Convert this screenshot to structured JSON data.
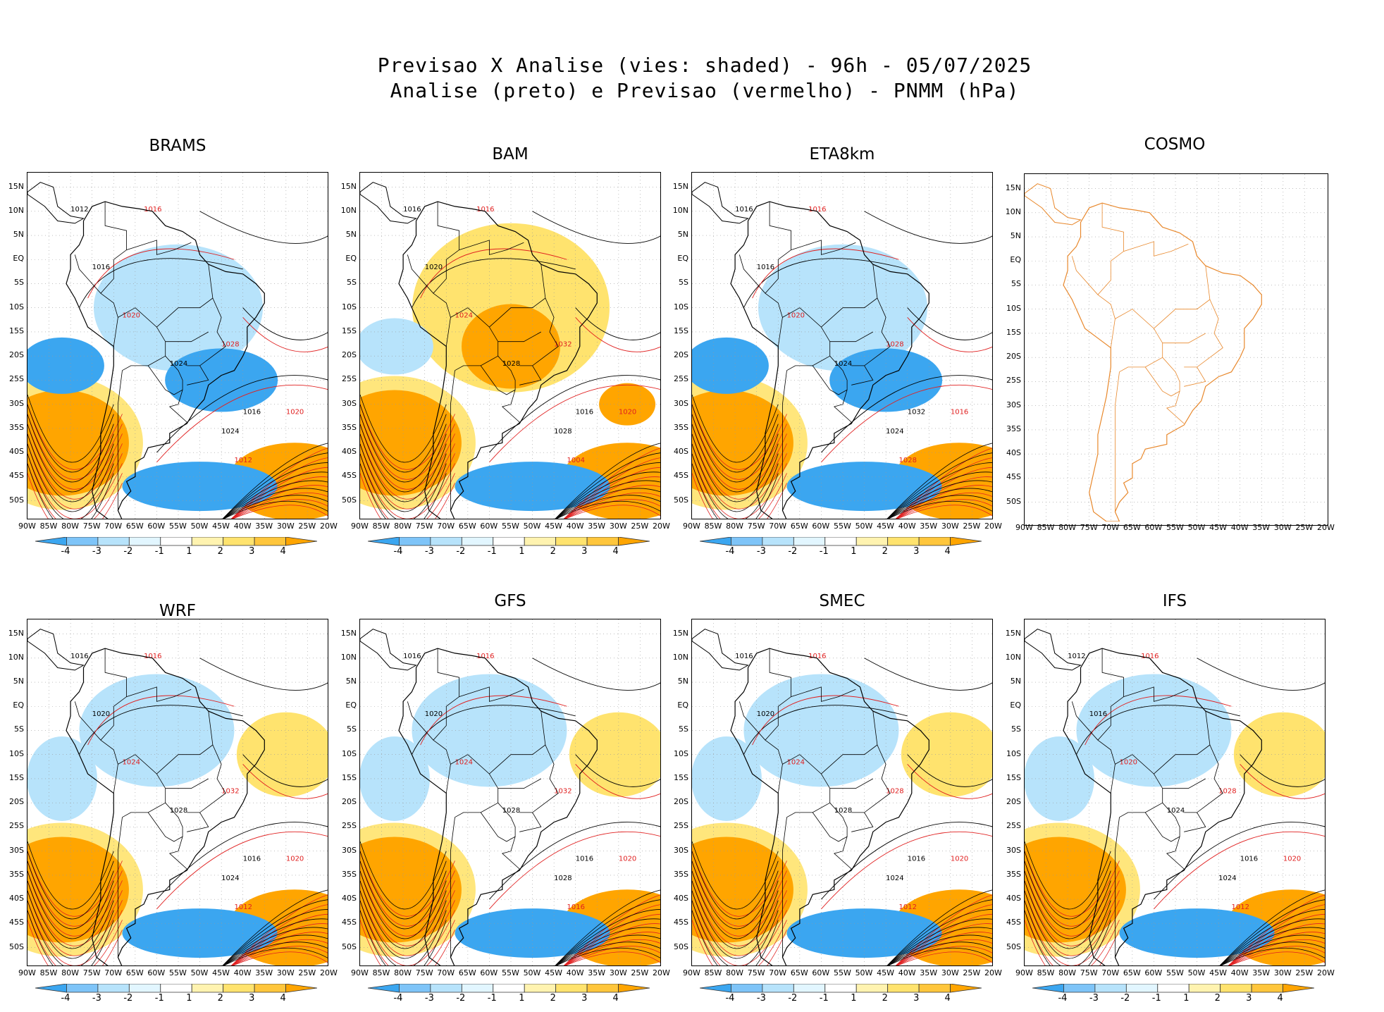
{
  "title": {
    "line1": "Previsao X Analise (vies: shaded) - 96h - 05/07/2025",
    "line2": "Analise (preto) e Previsao (vermelho) - PNMM (hPa)"
  },
  "lat_labels": [
    "15N",
    "10N",
    "5N",
    "EQ",
    "5S",
    "10S",
    "15S",
    "20S",
    "25S",
    "30S",
    "35S",
    "40S",
    "45S",
    "50S"
  ],
  "lon_labels": [
    "90W",
    "85W",
    "80W",
    "75W",
    "70W",
    "65W",
    "60W",
    "55W",
    "50W",
    "45W",
    "40W",
    "35W",
    "30W",
    "25W",
    "20W"
  ],
  "colorbar": {
    "labels": [
      "-4",
      "-3",
      "-2",
      "-1",
      "1",
      "2",
      "3",
      "4"
    ],
    "colors": [
      "#3ba6f0",
      "#7ec4f8",
      "#b7e3fb",
      "#e2f6ff",
      "#ffffff",
      "#fff3b0",
      "#ffe36e",
      "#ffc63c",
      "#ffa500"
    ]
  },
  "colors": {
    "warm": "#ffa500",
    "warm_light": "#ffe36e",
    "cool": "#3ba6f0",
    "cool_light": "#b7e3fb",
    "analysis_line": "#000000",
    "forecast_line": "#e02020",
    "cosmo_coast": "#e8882c"
  },
  "panels": [
    {
      "name": "BRAMS",
      "bias": "cool_north",
      "isobars": [
        "1012",
        "1016",
        "1016",
        "1020",
        "1024",
        "1028",
        "1016",
        "1020",
        "1024",
        "1012"
      ]
    },
    {
      "name": "BAM",
      "bias": "warm_north",
      "isobars": [
        "1016",
        "1016",
        "1020",
        "1024",
        "1028",
        "1032",
        "1016",
        "1020",
        "1028",
        "1004"
      ]
    },
    {
      "name": "ETA8km",
      "bias": "cool_north",
      "isobars": [
        "1016",
        "1016",
        "1016",
        "1020",
        "1024",
        "1028",
        "1032",
        "1016",
        "1024",
        "1028"
      ]
    },
    {
      "name": "COSMO",
      "bias": "none",
      "isobars": []
    },
    {
      "name": "WRF",
      "bias": "mixed",
      "isobars": [
        "1016",
        "1016",
        "1020",
        "1024",
        "1028",
        "1032",
        "1016",
        "1020",
        "1024",
        "1012"
      ]
    },
    {
      "name": "GFS",
      "bias": "mixed",
      "isobars": [
        "1016",
        "1016",
        "1020",
        "1024",
        "1028",
        "1032",
        "1016",
        "1020",
        "1028",
        "1016"
      ]
    },
    {
      "name": "SMEC",
      "bias": "mixed",
      "isobars": [
        "1016",
        "1016",
        "1020",
        "1024",
        "1028",
        "1028",
        "1016",
        "1020",
        "1024",
        "1012"
      ]
    },
    {
      "name": "IFS",
      "bias": "mixed",
      "isobars": [
        "1012",
        "1016",
        "1016",
        "1020",
        "1024",
        "1028",
        "1016",
        "1020",
        "1024",
        "1012"
      ]
    }
  ]
}
